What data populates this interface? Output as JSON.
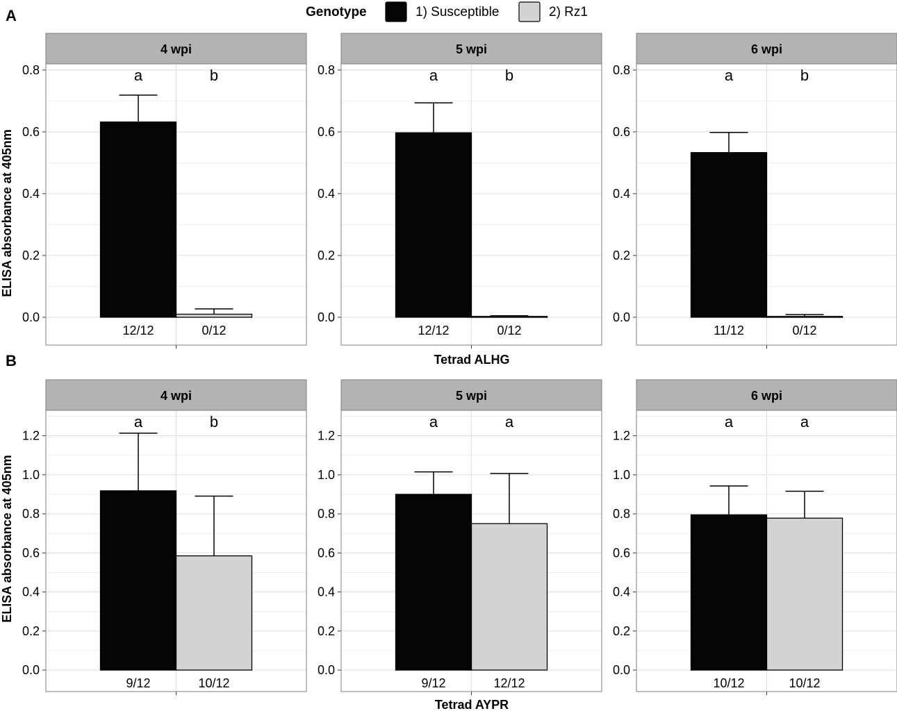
{
  "legend": {
    "title": "Genotype",
    "items": [
      {
        "label": "1) Susceptible",
        "color": "#050505"
      },
      {
        "label": "2) Rz1",
        "color": "#d3d3d3"
      }
    ]
  },
  "rows": [
    {
      "panel_letter": "A",
      "xlabel": "Tetrad ALHG",
      "ylabel": "ELISA absorbance at 405nm",
      "ylim": [
        -0.09,
        0.82
      ],
      "yticks": [
        "0.0",
        "0.2",
        "0.4",
        "0.6",
        "0.8"
      ]
    },
    {
      "panel_letter": "B",
      "xlabel": "Tetrad AYPR",
      "ylabel": "ELISA absorbance at 405nm",
      "ylim": [
        -0.11,
        1.33
      ],
      "yticks": [
        "0.0",
        "0.2",
        "0.4",
        "0.6",
        "0.8",
        "1.0",
        "1.2"
      ]
    }
  ],
  "chart_data": [
    {
      "type": "bar",
      "panel": "A",
      "title": "4 wpi",
      "xlabel": "Tetrad ALHG",
      "ylabel": "ELISA absorbance at 405nm",
      "ylim": [
        -0.09,
        0.82
      ],
      "series": [
        {
          "name": "1) Susceptible",
          "value": 0.632,
          "error": 0.087,
          "letter": "a",
          "count": "12/12"
        },
        {
          "name": "2) Rz1",
          "value": 0.01,
          "error": 0.017,
          "letter": "b",
          "count": "0/12"
        }
      ]
    },
    {
      "type": "bar",
      "panel": "A",
      "title": "5 wpi",
      "xlabel": "Tetrad ALHG",
      "ylabel": "ELISA absorbance at 405nm",
      "ylim": [
        -0.09,
        0.82
      ],
      "series": [
        {
          "name": "1) Susceptible",
          "value": 0.597,
          "error": 0.097,
          "letter": "a",
          "count": "12/12"
        },
        {
          "name": "2) Rz1",
          "value": 0.003,
          "error": 0.002,
          "letter": "b",
          "count": "0/12"
        }
      ]
    },
    {
      "type": "bar",
      "panel": "A",
      "title": "6 wpi",
      "xlabel": "Tetrad ALHG",
      "ylabel": "ELISA absorbance at 405nm",
      "ylim": [
        -0.09,
        0.82
      ],
      "series": [
        {
          "name": "1) Susceptible",
          "value": 0.533,
          "error": 0.065,
          "letter": "a",
          "count": "11/12"
        },
        {
          "name": "2) Rz1",
          "value": 0.003,
          "error": 0.006,
          "letter": "b",
          "count": "0/12"
        }
      ]
    },
    {
      "type": "bar",
      "panel": "B",
      "title": "4 wpi",
      "xlabel": "Tetrad AYPR",
      "ylabel": "ELISA absorbance at 405nm",
      "ylim": [
        -0.11,
        1.33
      ],
      "series": [
        {
          "name": "1) Susceptible",
          "value": 0.918,
          "error": 0.295,
          "letter": "a",
          "count": "9/12"
        },
        {
          "name": "2) Rz1",
          "value": 0.585,
          "error": 0.306,
          "letter": "b",
          "count": "10/12"
        }
      ]
    },
    {
      "type": "bar",
      "panel": "B",
      "title": "5 wpi",
      "xlabel": "Tetrad AYPR",
      "ylabel": "ELISA absorbance at 405nm",
      "ylim": [
        -0.11,
        1.33
      ],
      "series": [
        {
          "name": "1) Susceptible",
          "value": 0.9,
          "error": 0.115,
          "letter": "a",
          "count": "9/12"
        },
        {
          "name": "2) Rz1",
          "value": 0.75,
          "error": 0.257,
          "letter": "a",
          "count": "12/12"
        }
      ]
    },
    {
      "type": "bar",
      "panel": "B",
      "title": "6 wpi",
      "xlabel": "Tetrad AYPR",
      "ylabel": "ELISA absorbance at 405nm",
      "ylim": [
        -0.11,
        1.33
      ],
      "series": [
        {
          "name": "1) Susceptible",
          "value": 0.795,
          "error": 0.148,
          "letter": "a",
          "count": "10/12"
        },
        {
          "name": "2) Rz1",
          "value": 0.778,
          "error": 0.138,
          "letter": "a",
          "count": "10/12"
        }
      ]
    }
  ]
}
